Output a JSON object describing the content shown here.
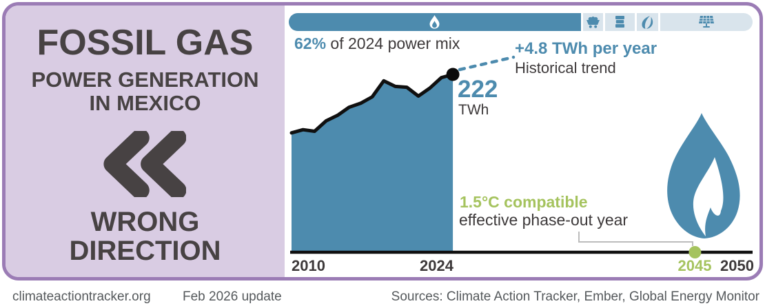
{
  "left_panel": {
    "title": "FOSSIL GAS",
    "subtitle_line1": "POWER GENERATION",
    "subtitle_line2": "IN MEXICO",
    "verdict_line1": "WRONG",
    "verdict_line2": "DIRECTION"
  },
  "power_mix_bar": {
    "segments": [
      {
        "name": "fossil-gas",
        "icon": "flame-icon",
        "share_pct": 62
      },
      {
        "name": "coal",
        "icon": "coal-cart-icon",
        "share_pct": 4
      },
      {
        "name": "oil",
        "icon": "oil-barrel-icon",
        "share_pct": 7
      },
      {
        "name": "bioenergy-hydro",
        "icon": "leaf-icon",
        "share_pct": 5
      },
      {
        "name": "solar-renewables",
        "icon": "solar-panel-icon",
        "share_pct": 20
      }
    ]
  },
  "caption": {
    "highlight": "62%",
    "rest": " of 2024 power mix"
  },
  "annotations": {
    "trend_value": "+4.8 TWh per year",
    "trend_label": "Historical trend",
    "end_value": "222",
    "end_unit": "TWh",
    "phaseout_title": "1.5°C compatible",
    "phaseout_label": "effective phase-out year"
  },
  "x_axis": {
    "labels": [
      "2010",
      "2024",
      "2045",
      "2050"
    ]
  },
  "footer": {
    "site": "climateactiontracker.org",
    "update": "Feb 2026 update",
    "sources": "Sources: Climate Action Tracker, Ember, Global Energy Monitor"
  },
  "colors": {
    "blue": "#4d8bae",
    "green": "#a5c35e",
    "purple": "#9b7cb5",
    "lavender": "#d9cce3",
    "dark": "#3d393a",
    "bar-light": "#d9e4ec"
  },
  "chart_data": {
    "type": "area",
    "title": "Fossil gas power generation in Mexico",
    "unit": "TWh",
    "x": [
      2010,
      2011,
      2012,
      2013,
      2014,
      2015,
      2016,
      2017,
      2018,
      2019,
      2020,
      2021,
      2022,
      2023,
      2024
    ],
    "values": [
      149,
      153,
      151,
      164,
      171,
      181,
      186,
      194,
      214,
      207,
      206,
      195,
      205,
      218,
      222
    ],
    "xlim": [
      2010,
      2050
    ],
    "ylim": [
      0,
      240
    ],
    "end_point": {
      "year": 2024,
      "value": 222
    },
    "trend_per_year_twh": 4.8,
    "share_of_2024_power_mix": "62%",
    "phase_out_year": 2045,
    "grid": false,
    "legend": false
  }
}
